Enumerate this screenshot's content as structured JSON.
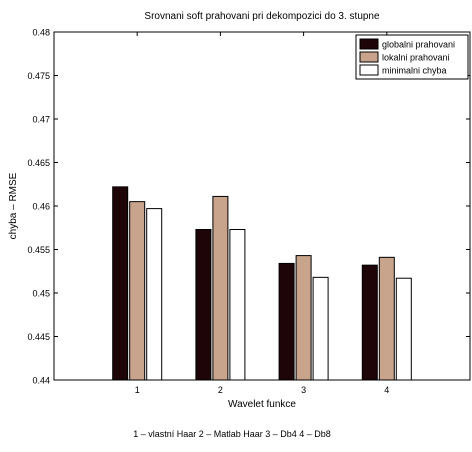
{
  "chart_data": {
    "type": "bar",
    "title": "Srovnani soft prahovani pri dekompozici do 3. stupne",
    "xlabel": "Wavelet funkce",
    "ylabel": "chyba – RMSE",
    "footnote": "1 – vlastní Haar   2 – Matlab Haar   3 – Db4    4 – Db8",
    "categories": [
      "1",
      "2",
      "3",
      "4"
    ],
    "ylim": [
      0.44,
      0.48
    ],
    "yticks": [
      "0.44",
      "0.445",
      "0.45",
      "0.455",
      "0.46",
      "0.465",
      "0.47",
      "0.475",
      "0.48"
    ],
    "legend_position": "top-right",
    "grid": false,
    "series": [
      {
        "name": "globalni prahovani",
        "color": "#1e0507",
        "values": [
          0.4622,
          0.4573,
          0.4534,
          0.4532
        ]
      },
      {
        "name": "lokalni prahovani",
        "color": "#c8a48c",
        "values": [
          0.4605,
          0.4611,
          0.4543,
          0.4541
        ]
      },
      {
        "name": "minimalni chyba",
        "color": "#ffffff",
        "values": [
          0.4597,
          0.4573,
          0.4518,
          0.4517
        ]
      }
    ]
  }
}
